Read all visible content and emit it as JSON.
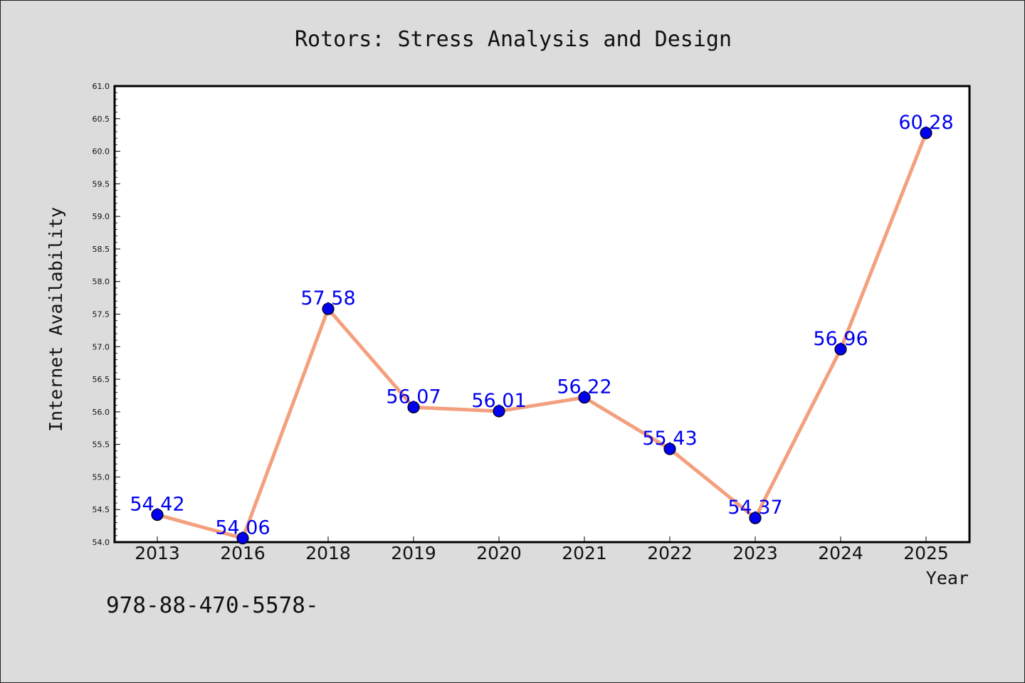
{
  "chart_data": {
    "type": "line",
    "title": "Rotors: Stress Analysis and Design",
    "xlabel": "Year",
    "ylabel": "Internet Availability",
    "categories": [
      "2013",
      "2016",
      "2018",
      "2019",
      "2020",
      "2021",
      "2022",
      "2023",
      "2024",
      "2025"
    ],
    "series": [
      {
        "values": [
          54.42,
          54.06,
          57.58,
          56.07,
          56.01,
          56.22,
          55.43,
          54.37,
          56.96,
          60.28
        ],
        "data_labels": [
          "54.42",
          "54.06",
          "57.58",
          "56.07",
          "56.01",
          "56.22",
          "55.43",
          "54.37",
          "56.96",
          "60.28"
        ]
      }
    ],
    "ylim": [
      54.0,
      61.0
    ],
    "yticks": [
      "54.0",
      "54.5",
      "55.0",
      "55.5",
      "56.0",
      "56.5",
      "57.0",
      "57.5",
      "58.0",
      "58.5",
      "59.0",
      "59.5",
      "60.0",
      "60.5",
      "61.0"
    ],
    "grid": false,
    "legend": "none",
    "colors": {
      "line": "#f4a07e",
      "marker": "#0000ee",
      "label": "#0000ee",
      "background": "#dcdcdc",
      "plot_background": "#ffffff"
    }
  },
  "footer": {
    "text": "978-88-470-5578-"
  }
}
